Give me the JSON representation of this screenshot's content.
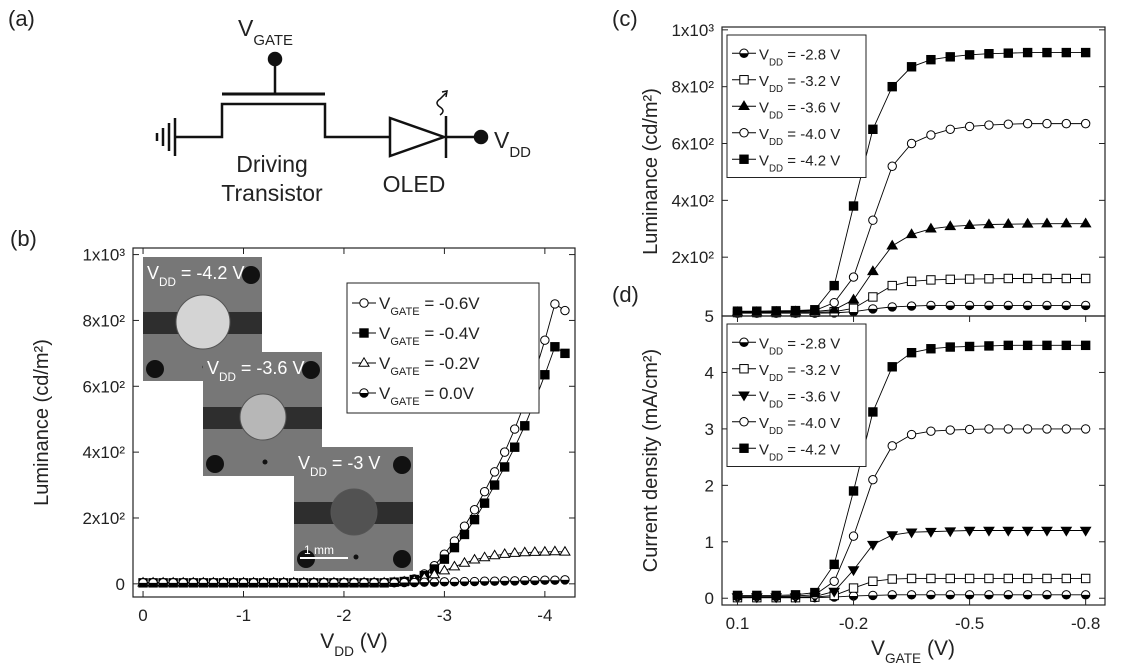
{
  "circuit": {
    "panel_label": "(a)",
    "gate": [
      "V",
      "GATE"
    ],
    "transistor_line1": "Driving",
    "transistor_line2": "Transistor",
    "oled": "OLED",
    "vdd": [
      "V",
      "DD"
    ]
  },
  "chart_data": [
    {
      "type": "line",
      "panel_label": "(b)",
      "xlabel": [
        "V",
        "DD",
        " (V)"
      ],
      "ylabel": "Luminance (cd/m²)",
      "xlim": [
        0.1,
        -4.3
      ],
      "ylim": [
        -40,
        1020
      ],
      "xticks": [
        0,
        -1,
        -2,
        -3,
        -4
      ],
      "yticks": [
        0,
        {
          "value": 200,
          "label": "2x10²"
        },
        {
          "value": 400,
          "label": "4x10²"
        },
        {
          "value": 600,
          "label": "6x10²"
        },
        {
          "value": 800,
          "label": "8x10²"
        },
        {
          "value": 1000,
          "label": "1x10³"
        }
      ],
      "legend": "upper right",
      "x": [
        0,
        -0.1,
        -0.2,
        -0.3,
        -0.4,
        -0.5,
        -0.6,
        -0.7,
        -0.8,
        -0.9,
        -1,
        -1.1,
        -1.2,
        -1.3,
        -1.4,
        -1.5,
        -1.6,
        -1.7,
        -1.8,
        -1.9,
        -2,
        -2.1,
        -2.2,
        -2.3,
        -2.4,
        -2.5,
        -2.6,
        -2.7,
        -2.8,
        -2.9,
        -3,
        -3.1,
        -3.2,
        -3.3,
        -3.4,
        -3.5,
        -3.6,
        -3.7,
        -3.8,
        -3.9,
        -4,
        -4.1,
        -4.2
      ],
      "series": [
        {
          "name": [
            "V",
            "GATE",
            " = -0.6V"
          ],
          "marker": "circle-open",
          "color": "#000000",
          "values": [
            3,
            3,
            3,
            3,
            3,
            3,
            3,
            3,
            3,
            3,
            3,
            3,
            3,
            3,
            3,
            3,
            3,
            3,
            3,
            3,
            3,
            3,
            3,
            3,
            3,
            5,
            8,
            15,
            30,
            55,
            90,
            130,
            175,
            225,
            280,
            340,
            400,
            470,
            550,
            640,
            740,
            850,
            830
          ]
        },
        {
          "name": [
            "V",
            "GATE",
            " = -0.4V"
          ],
          "marker": "square-filled",
          "color": "#000000",
          "values": [
            3,
            3,
            3,
            3,
            3,
            3,
            3,
            3,
            3,
            3,
            3,
            3,
            3,
            3,
            3,
            3,
            3,
            3,
            3,
            3,
            3,
            3,
            3,
            3,
            3,
            5,
            7,
            13,
            25,
            45,
            75,
            110,
            150,
            195,
            245,
            300,
            355,
            415,
            480,
            555,
            635,
            720,
            700
          ]
        },
        {
          "name": [
            "V",
            "GATE",
            " = -0.2V"
          ],
          "marker": "triangle-open",
          "color": "#000000",
          "values": [
            3,
            3,
            3,
            3,
            3,
            3,
            3,
            3,
            3,
            3,
            3,
            3,
            3,
            3,
            3,
            3,
            3,
            3,
            3,
            3,
            3,
            3,
            3,
            3,
            3,
            4,
            6,
            10,
            18,
            28,
            40,
            52,
            63,
            73,
            80,
            86,
            90,
            93,
            95,
            96,
            97,
            98,
            97
          ]
        },
        {
          "name": [
            "V",
            "GATE",
            " =  0.0V"
          ],
          "marker": "circle-half",
          "color": "#000000",
          "values": [
            3,
            3,
            3,
            3,
            3,
            3,
            3,
            3,
            3,
            3,
            3,
            3,
            3,
            3,
            3,
            3,
            3,
            3,
            3,
            3,
            3,
            3,
            3,
            3,
            3,
            3,
            4,
            4,
            5,
            5,
            6,
            6,
            7,
            7,
            8,
            8,
            9,
            9,
            10,
            10,
            11,
            11,
            12
          ]
        }
      ],
      "insets": [
        {
          "label": [
            "V",
            "DD",
            " = -4.2 V"
          ]
        },
        {
          "label": [
            "V",
            "DD",
            " = -3.6 V"
          ]
        },
        {
          "label": [
            "V",
            "DD",
            " = -3 V"
          ]
        }
      ],
      "scale_bar": "1 mm"
    },
    {
      "type": "line",
      "panel_label": "(c)",
      "ylabel": "Luminance (cd/m²)",
      "xlim": [
        0.14,
        -0.85
      ],
      "ylim": [
        -7,
        1010
      ],
      "yticks": [
        {
          "value": 200,
          "label": "2x10²"
        },
        {
          "value": 400,
          "label": "4x10²"
        },
        {
          "value": 600,
          "label": "6x10²"
        },
        {
          "value": 800,
          "label": "8x10²"
        },
        {
          "value": 1000,
          "label": "1x10³"
        }
      ],
      "legend": "upper left",
      "x": [
        0.1,
        0.05,
        0,
        -0.05,
        -0.1,
        -0.15,
        -0.2,
        -0.25,
        -0.3,
        -0.35,
        -0.4,
        -0.45,
        -0.5,
        -0.55,
        -0.6,
        -0.65,
        -0.7,
        -0.75,
        -0.8
      ],
      "series": [
        {
          "name": [
            "V",
            "DD",
            " = -2.8 V"
          ],
          "marker": "circle-half",
          "color": "#000000",
          "values": [
            3,
            3,
            3,
            3,
            3,
            4,
            8,
            18,
            25,
            28,
            30,
            30,
            30,
            30,
            30,
            30,
            30,
            30,
            30
          ]
        },
        {
          "name": [
            "V",
            "DD",
            " = -3.2 V"
          ],
          "marker": "square-open",
          "color": "#000000",
          "values": [
            5,
            5,
            5,
            5,
            6,
            8,
            20,
            60,
            100,
            115,
            120,
            122,
            123,
            124,
            125,
            125,
            125,
            125,
            125
          ]
        },
        {
          "name": [
            "V",
            "DD",
            " = -3.6 V"
          ],
          "marker": "triangle-filled",
          "color": "#000000",
          "values": [
            6,
            6,
            7,
            8,
            9,
            15,
            50,
            150,
            240,
            280,
            300,
            308,
            312,
            315,
            316,
            317,
            318,
            318,
            318
          ]
        },
        {
          "name": [
            "V",
            "DD",
            " = -4.0 V"
          ],
          "marker": "circle-open",
          "color": "#000000",
          "values": [
            8,
            8,
            9,
            10,
            12,
            40,
            130,
            330,
            520,
            600,
            630,
            650,
            660,
            665,
            668,
            670,
            670,
            670,
            670
          ]
        },
        {
          "name": [
            "V",
            "DD",
            " = -4.2 V"
          ],
          "marker": "square-filled",
          "color": "#000000",
          "values": [
            10,
            10,
            11,
            12,
            15,
            100,
            380,
            650,
            800,
            870,
            895,
            905,
            912,
            916,
            918,
            920,
            920,
            920,
            920
          ]
        }
      ]
    },
    {
      "type": "line",
      "panel_label": "(d)",
      "xlabel": [
        "V",
        "GATE",
        " (V)"
      ],
      "ylabel": "Current density (mA/cm²)",
      "xlim": [
        0.14,
        -0.85
      ],
      "ylim": [
        -0.12,
        5
      ],
      "xticks": [
        0.1,
        -0.2,
        -0.5,
        -0.8
      ],
      "yticks": [
        0,
        1,
        2,
        3,
        4,
        5
      ],
      "legend": "upper left",
      "x": [
        0.1,
        0.05,
        0,
        -0.05,
        -0.1,
        -0.15,
        -0.2,
        -0.25,
        -0.3,
        -0.35,
        -0.4,
        -0.45,
        -0.5,
        -0.55,
        -0.6,
        -0.65,
        -0.7,
        -0.75,
        -0.8
      ],
      "series": [
        {
          "name": [
            "V",
            "DD",
            " = -2.8 V"
          ],
          "marker": "circle-half",
          "color": "#000000",
          "values": [
            0.01,
            0.01,
            0.01,
            0.01,
            0.01,
            0.02,
            0.04,
            0.05,
            0.06,
            0.06,
            0.06,
            0.06,
            0.06,
            0.06,
            0.06,
            0.06,
            0.06,
            0.06,
            0.06
          ]
        },
        {
          "name": [
            "V",
            "DD",
            " = -3.2 V"
          ],
          "marker": "square-open",
          "color": "#000000",
          "values": [
            0.01,
            0.01,
            0.01,
            0.01,
            0.02,
            0.05,
            0.18,
            0.3,
            0.34,
            0.35,
            0.35,
            0.35,
            0.35,
            0.35,
            0.35,
            0.35,
            0.35,
            0.35,
            0.35
          ]
        },
        {
          "name": [
            "V",
            "DD",
            " = -3.6 V"
          ],
          "marker": "triangle-down-filled",
          "color": "#000000",
          "values": [
            0.02,
            0.02,
            0.02,
            0.02,
            0.03,
            0.12,
            0.5,
            0.95,
            1.12,
            1.17,
            1.18,
            1.19,
            1.2,
            1.2,
            1.2,
            1.2,
            1.2,
            1.2,
            1.2
          ]
        },
        {
          "name": [
            "V",
            "DD",
            " = -4.0 V"
          ],
          "marker": "circle-open",
          "color": "#000000",
          "values": [
            0.03,
            0.03,
            0.03,
            0.04,
            0.06,
            0.3,
            1.1,
            2.1,
            2.7,
            2.9,
            2.96,
            2.98,
            2.99,
            3,
            3,
            3,
            3,
            3,
            3
          ]
        },
        {
          "name": [
            "V",
            "DD",
            " = -4.2 V"
          ],
          "marker": "square-filled",
          "color": "#000000",
          "values": [
            0.05,
            0.05,
            0.05,
            0.06,
            0.1,
            0.6,
            1.9,
            3.3,
            4.1,
            4.35,
            4.42,
            4.45,
            4.46,
            4.47,
            4.48,
            4.48,
            4.48,
            4.48,
            4.48
          ]
        }
      ]
    }
  ]
}
